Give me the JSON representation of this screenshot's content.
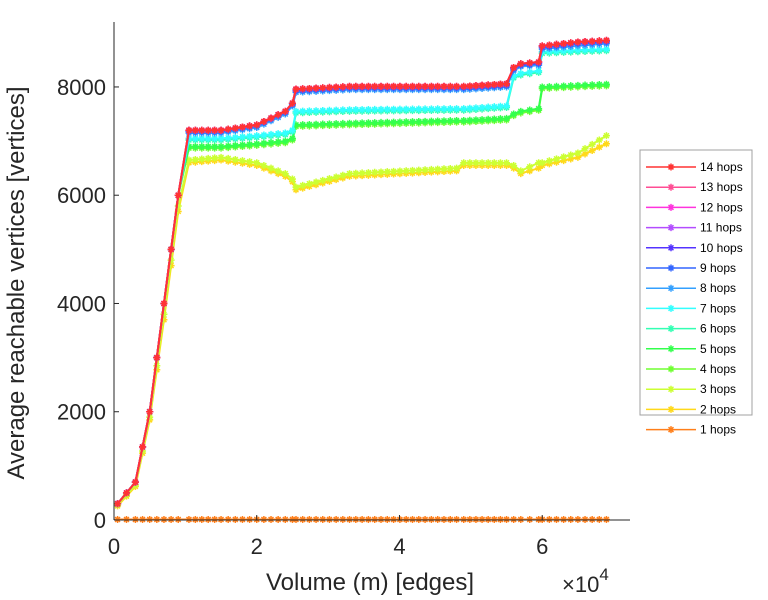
{
  "chart_data": {
    "type": "line",
    "title": "",
    "xlabel": "Volume (m) [edges]",
    "ylabel": "Average reachable vertices [vertices]",
    "x_multiplier_label": "×10",
    "x_multiplier_exp": "4",
    "xlim": [
      0,
      7.23
    ],
    "ylim": [
      0,
      9200
    ],
    "x_unit_scale": 10000,
    "xticks": [
      0,
      2,
      4,
      6
    ],
    "xtick_labels": [
      "0",
      "2",
      "4",
      "6"
    ],
    "yticks": [
      0,
      2000,
      4000,
      6000,
      8000
    ],
    "ytick_labels": [
      "0",
      "2000",
      "4000",
      "6000",
      "8000"
    ],
    "grid": false,
    "legend_position": "right",
    "x": [
      0.05,
      0.3,
      0.5,
      0.7,
      0.9,
      1.05,
      1.5,
      2.0,
      2.4,
      2.5,
      2.55,
      3.3,
      4.8,
      4.9,
      5.5,
      5.6,
      5.7,
      5.95,
      6.0,
      6.5,
      6.9
    ],
    "series": [
      {
        "name": "14 hops",
        "color": "#ff3333",
        "values": [
          300,
          700,
          2000,
          4000,
          6000,
          7200,
          7200,
          7300,
          7550,
          7700,
          7960,
          8010,
          8010,
          8010,
          8060,
          8360,
          8430,
          8460,
          8760,
          8830,
          8860
        ]
      },
      {
        "name": "13 hops",
        "color": "#ff4d94",
        "values": [
          300,
          700,
          2000,
          4000,
          6000,
          7200,
          7200,
          7300,
          7550,
          7700,
          7960,
          8010,
          8010,
          8010,
          8060,
          8360,
          8430,
          8460,
          8760,
          8830,
          8860
        ]
      },
      {
        "name": "12 hops",
        "color": "#ff33dd",
        "values": [
          300,
          700,
          2000,
          4000,
          6000,
          7200,
          7200,
          7300,
          7550,
          7700,
          7960,
          8010,
          8010,
          8010,
          8060,
          8360,
          8430,
          8460,
          8760,
          8830,
          8860
        ]
      },
      {
        "name": "11 hops",
        "color": "#b34dff",
        "values": [
          300,
          700,
          2000,
          4000,
          6000,
          7200,
          7200,
          7300,
          7550,
          7700,
          7960,
          8010,
          8010,
          8010,
          8060,
          8360,
          8430,
          8460,
          8760,
          8830,
          8860
        ]
      },
      {
        "name": "10 hops",
        "color": "#5533ff",
        "values": [
          300,
          700,
          2000,
          4000,
          6000,
          7200,
          7200,
          7300,
          7550,
          7700,
          7950,
          8000,
          8000,
          8000,
          8050,
          8350,
          8420,
          8450,
          8750,
          8820,
          8850
        ]
      },
      {
        "name": "9 hops",
        "color": "#3366ff",
        "values": [
          300,
          700,
          2000,
          4000,
          6000,
          7180,
          7180,
          7280,
          7530,
          7680,
          7930,
          7980,
          7980,
          7980,
          8030,
          8330,
          8400,
          8430,
          8730,
          8800,
          8830
        ]
      },
      {
        "name": "8 hops",
        "color": "#33a0ff",
        "values": [
          300,
          700,
          2000,
          4000,
          6000,
          7150,
          7150,
          7250,
          7500,
          7650,
          7900,
          7950,
          7950,
          7950,
          8000,
          8300,
          8380,
          8400,
          8700,
          8760,
          8800
        ]
      },
      {
        "name": "7 hops",
        "color": "#33ffff",
        "values": [
          300,
          700,
          2000,
          4000,
          6000,
          7050,
          7050,
          7100,
          7150,
          7200,
          7550,
          7580,
          7600,
          7600,
          7650,
          8200,
          8250,
          8300,
          8650,
          8680,
          8700
        ]
      },
      {
        "name": "6 hops",
        "color": "#33ffb3",
        "values": [
          300,
          700,
          2000,
          4000,
          6000,
          7020,
          7020,
          7070,
          7120,
          7170,
          7520,
          7550,
          7570,
          7570,
          7620,
          8170,
          8220,
          8270,
          8620,
          8650,
          8670
        ]
      },
      {
        "name": "5 hops",
        "color": "#33ff4d",
        "values": [
          300,
          700,
          2000,
          4000,
          6000,
          6900,
          6900,
          6950,
          7000,
          7050,
          7300,
          7330,
          7380,
          7380,
          7420,
          7500,
          7550,
          7600,
          8000,
          8030,
          8050
        ]
      },
      {
        "name": "4 hops",
        "color": "#70ff33",
        "values": [
          300,
          700,
          2000,
          4000,
          6000,
          6870,
          6870,
          6920,
          6970,
          7020,
          7270,
          7300,
          7350,
          7350,
          7390,
          7470,
          7520,
          7570,
          7970,
          8000,
          8020
        ]
      },
      {
        "name": "3 hops",
        "color": "#ccff33",
        "values": [
          280,
          650,
          1900,
          3800,
          5800,
          6650,
          6700,
          6600,
          6400,
          6300,
          6150,
          6400,
          6500,
          6600,
          6600,
          6550,
          6450,
          6600,
          6600,
          6780,
          7100
        ]
      },
      {
        "name": "2 hops",
        "color": "#ffd91a",
        "values": [
          260,
          620,
          1850,
          3700,
          5700,
          6600,
          6650,
          6550,
          6350,
          6250,
          6100,
          6350,
          6450,
          6550,
          6550,
          6500,
          6400,
          6500,
          6550,
          6700,
          6950
        ]
      },
      {
        "name": "1 hops",
        "color": "#ff7f1a",
        "values": [
          10,
          10,
          10,
          10,
          10,
          10,
          10,
          10,
          10,
          10,
          10,
          10,
          10,
          10,
          10,
          10,
          10,
          10,
          10,
          10,
          10
        ]
      }
    ]
  }
}
